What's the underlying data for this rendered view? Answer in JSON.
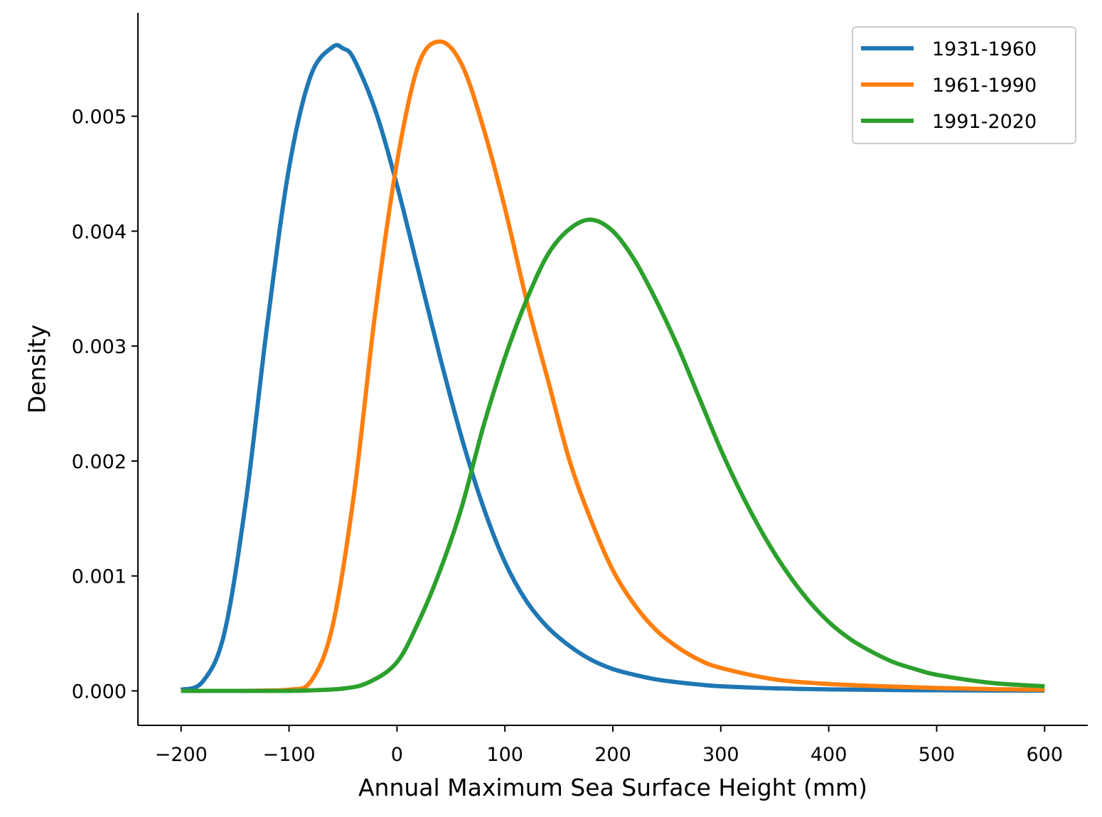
{
  "chart_data": {
    "type": "line",
    "title": "",
    "xlabel": "Annual Maximum Sea Surface Height (mm)",
    "ylabel": "Density",
    "xlim": [
      -240,
      640
    ],
    "ylim": [
      -0.0003,
      0.0059
    ],
    "x_ticks": [
      -200,
      -100,
      0,
      100,
      200,
      300,
      400,
      500,
      600
    ],
    "x_tick_labels": [
      "−200",
      "−100",
      "0",
      "100",
      "200",
      "300",
      "400",
      "500",
      "600"
    ],
    "y_ticks": [
      0.0,
      0.001,
      0.002,
      0.003,
      0.004,
      0.005
    ],
    "y_tick_labels": [
      "0.000",
      "0.001",
      "0.002",
      "0.003",
      "0.004",
      "0.005"
    ],
    "grid": false,
    "legend_position": "top-right",
    "series": [
      {
        "name": "1931-1960",
        "color": "#1f77b4",
        "x": [
          -200,
          -180,
          -160,
          -140,
          -120,
          -100,
          -80,
          -60,
          -50,
          -40,
          -20,
          0,
          20,
          40,
          60,
          80,
          100,
          120,
          140,
          160,
          180,
          200,
          220,
          240,
          260,
          280,
          300,
          350,
          400,
          450,
          500,
          550,
          600
        ],
        "y": [
          1e-05,
          8e-05,
          0.0005,
          0.00165,
          0.0032,
          0.00455,
          0.00535,
          0.0056,
          0.00559,
          0.0055,
          0.00505,
          0.0044,
          0.00365,
          0.0029,
          0.0022,
          0.0016,
          0.00112,
          0.00078,
          0.00055,
          0.00039,
          0.00027,
          0.00019,
          0.00014,
          0.0001,
          7.5e-05,
          5.5e-05,
          4e-05,
          2.2e-05,
          1.3e-05,
          8e-06,
          5e-06,
          3e-06,
          2e-06
        ]
      },
      {
        "name": "1961-1990",
        "color": "#ff7f0e",
        "x": [
          -200,
          -150,
          -100,
          -80,
          -60,
          -40,
          -20,
          0,
          20,
          40,
          60,
          80,
          100,
          120,
          140,
          160,
          180,
          200,
          220,
          240,
          260,
          280,
          300,
          350,
          400,
          450,
          500,
          550,
          600
        ],
        "y": [
          0.0,
          0.0,
          1e-05,
          8e-05,
          0.00055,
          0.0017,
          0.0033,
          0.0046,
          0.00545,
          0.00565,
          0.00545,
          0.0049,
          0.0042,
          0.0034,
          0.0027,
          0.002,
          0.00148,
          0.00105,
          0.00075,
          0.00053,
          0.00038,
          0.00027,
          0.0002,
          0.0001,
          6e-05,
          4e-05,
          2.5e-05,
          1.5e-05,
          1e-05
        ]
      },
      {
        "name": "1991-2020",
        "color": "#2ca02c",
        "x": [
          -200,
          -150,
          -100,
          -50,
          -25,
          0,
          20,
          40,
          60,
          80,
          100,
          120,
          140,
          160,
          180,
          200,
          220,
          240,
          260,
          280,
          300,
          320,
          340,
          360,
          380,
          400,
          420,
          440,
          460,
          480,
          500,
          550,
          600
        ],
        "y": [
          0.0,
          0.0,
          0.0,
          2e-05,
          8e-05,
          0.00025,
          0.0006,
          0.00105,
          0.0016,
          0.0023,
          0.0029,
          0.0034,
          0.0038,
          0.00402,
          0.0041,
          0.004,
          0.00375,
          0.0034,
          0.003,
          0.00255,
          0.0021,
          0.0017,
          0.00135,
          0.00105,
          0.0008,
          0.0006,
          0.00045,
          0.00034,
          0.00025,
          0.00019,
          0.00014,
          7e-05,
          4e-05
        ]
      }
    ]
  }
}
